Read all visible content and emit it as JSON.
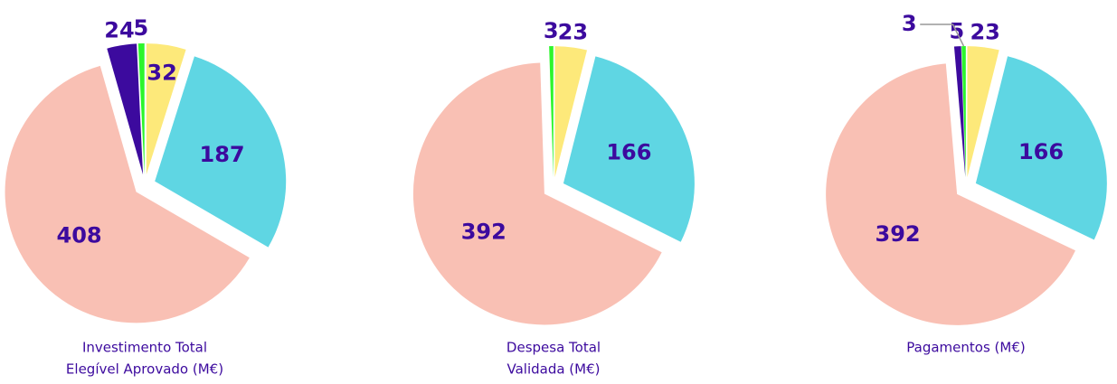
{
  "chart_data": [
    {
      "type": "pie",
      "title": [
        "Investimento Total",
        "Elegível Aprovado (M€)"
      ],
      "values": [
        32,
        187,
        408,
        24,
        5
      ],
      "colors": [
        "#fde97a",
        "#5fd6e3",
        "#f9c0b4",
        "#3c0a9e",
        "#2cf52c"
      ]
    },
    {
      "type": "pie",
      "title": [
        "Despesa Total",
        "Validada (M€)"
      ],
      "values": [
        23,
        166,
        392,
        3
      ],
      "colors": [
        "#fde97a",
        "#5fd6e3",
        "#f9c0b4",
        "#2cf52c"
      ]
    },
    {
      "type": "pie",
      "title": [
        "Pagamentos (M€)"
      ],
      "values": [
        23,
        166,
        392,
        5,
        3
      ],
      "colors": [
        "#fde97a",
        "#5fd6e3",
        "#f9c0b4",
        "#3c0a9e",
        "#2cf52c"
      ]
    }
  ]
}
